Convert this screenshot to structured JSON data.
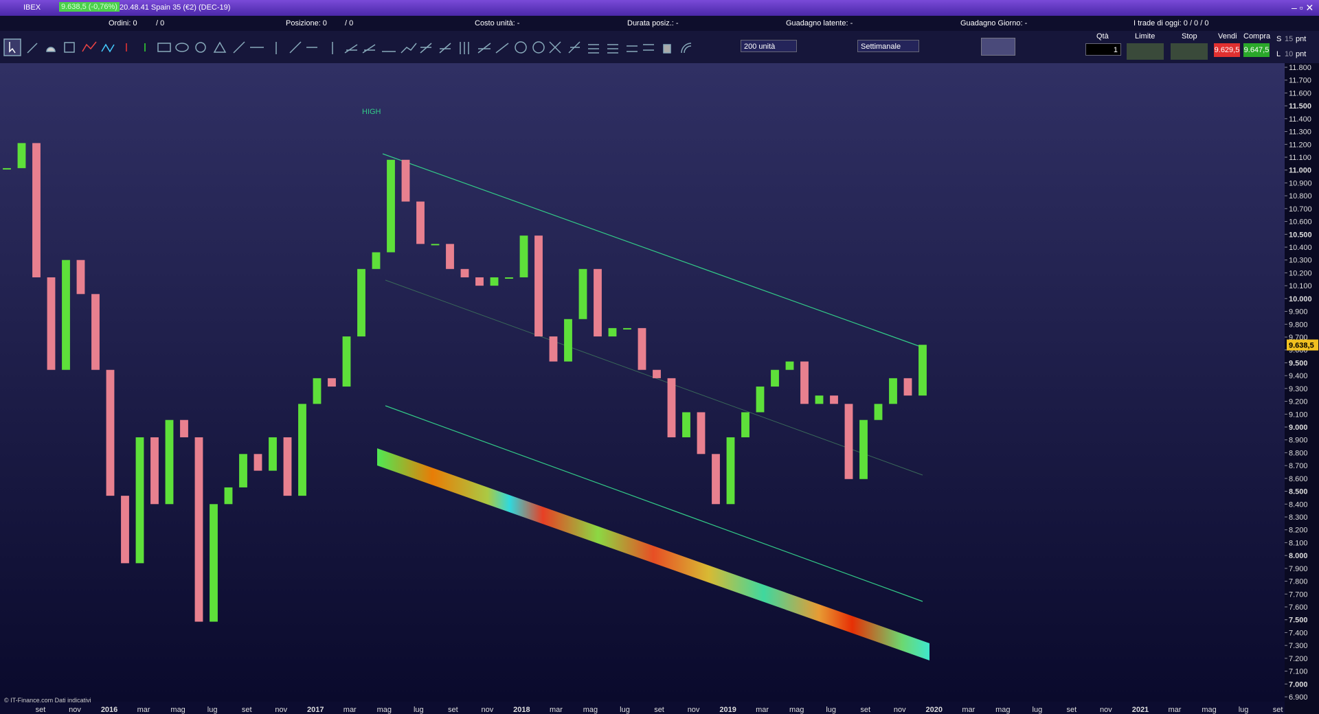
{
  "title_bar": {
    "symbol": "IBEX",
    "quote": "9.638,5 (-0,76%)",
    "info": "20.48.41 Spain 35 (€2) (DEC-19)"
  },
  "status_bar": {
    "orders": "Ordini: 0",
    "orders_total": "/ 0",
    "position": "Posizione: 0",
    "position_total": "/ 0",
    "unit_cost": "Costo unità: -",
    "duration": "Durata posiz.: -",
    "latent_gain": "Guadagno latente: -",
    "day_gain": "Guadagno Giorno: -",
    "trades_today": "I trade di oggi: 0 / 0 / 0"
  },
  "toolbar": {
    "quantity_select": "200 unità",
    "period_select": "Settimanale",
    "qty_label": "Qtà",
    "qty_value": "1",
    "limit_label": "Limite",
    "stop_label": "Stop",
    "sell_label": "Vendi",
    "sell_price": "9.629,5",
    "buy_label": "Compra",
    "buy_price": "9.647,5",
    "s_label": "S",
    "s_value": "15",
    "s_unit": "pnt",
    "l_label": "L",
    "l_value": "10",
    "l_unit": "pnt"
  },
  "chart_data": {
    "type": "candlestick",
    "annotation": "HIGH",
    "footer": "© IT-Finance.com Dati indicativi",
    "values": [
      11015,
      11210,
      10165,
      9445,
      10300,
      10035,
      9445,
      8465,
      7940,
      8920,
      8400,
      9055,
      8920,
      7485,
      8400,
      8530,
      8790,
      8660,
      8920,
      8465,
      9180,
      9380,
      9315,
      9705,
      10230,
      10360,
      11080,
      10755,
      10425,
      10425,
      10230,
      10165,
      10100,
      10165,
      10165,
      10490,
      9705,
      9510,
      9840,
      10230,
      9705,
      9770,
      9770,
      9445,
      9380,
      8920,
      9115,
      8790,
      8400,
      8920,
      9115,
      9315,
      9445,
      9510,
      9180,
      9245,
      9180,
      8595,
      9055,
      9180,
      9380,
      9245,
      9640
    ],
    "up_color": "#5ee03a",
    "down_color": "#e8808f",
    "last_price": {
      "value": 9638.5,
      "label": "9.638,5"
    },
    "ylim": [
      6900,
      11800
    ],
    "yticks": [
      {
        "value": 6900,
        "label": "6.900"
      },
      {
        "value": 7000,
        "label": "7.000"
      },
      {
        "value": 7100,
        "label": "7.100"
      },
      {
        "value": 7200,
        "label": "7.200"
      },
      {
        "value": 7300,
        "label": "7.300"
      },
      {
        "value": 7400,
        "label": "7.400"
      },
      {
        "value": 7500,
        "label": "7.500"
      },
      {
        "value": 7600,
        "label": "7.600"
      },
      {
        "value": 7700,
        "label": "7.700"
      },
      {
        "value": 7800,
        "label": "7.800"
      },
      {
        "value": 7900,
        "label": "7.900"
      },
      {
        "value": 8000,
        "label": "8.000"
      },
      {
        "value": 8100,
        "label": "8.100"
      },
      {
        "value": 8200,
        "label": "8.200"
      },
      {
        "value": 8300,
        "label": "8.300"
      },
      {
        "value": 8400,
        "label": "8.400"
      },
      {
        "value": 8500,
        "label": "8.500"
      },
      {
        "value": 8600,
        "label": "8.600"
      },
      {
        "value": 8700,
        "label": "8.700"
      },
      {
        "value": 8800,
        "label": "8.800"
      },
      {
        "value": 8900,
        "label": "8.900"
      },
      {
        "value": 9000,
        "label": "9.000"
      },
      {
        "value": 9100,
        "label": "9.100"
      },
      {
        "value": 9200,
        "label": "9.200"
      },
      {
        "value": 9300,
        "label": "9.300"
      },
      {
        "value": 9400,
        "label": "9.400"
      },
      {
        "value": 9500,
        "label": "9.500"
      },
      {
        "value": 9600,
        "label": "9.600"
      },
      {
        "value": 9700,
        "label": "9.700"
      },
      {
        "value": 9800,
        "label": "9.800"
      },
      {
        "value": 9900,
        "label": "9.900"
      },
      {
        "value": 10000,
        "label": "10.000"
      },
      {
        "value": 10100,
        "label": "10.100"
      },
      {
        "value": 10200,
        "label": "10.200"
      },
      {
        "value": 10300,
        "label": "10.300"
      },
      {
        "value": 10400,
        "label": "10.400"
      },
      {
        "value": 10500,
        "label": "10.500"
      },
      {
        "value": 10600,
        "label": "10.600"
      },
      {
        "value": 10700,
        "label": "10.700"
      },
      {
        "value": 10800,
        "label": "10.800"
      },
      {
        "value": 10900,
        "label": "10.900"
      },
      {
        "value": 11000,
        "label": "11.000"
      },
      {
        "value": 11100,
        "label": "11.100"
      },
      {
        "value": 11200,
        "label": "11.200"
      },
      {
        "value": 11300,
        "label": "11.300"
      },
      {
        "value": 11400,
        "label": "11.400"
      },
      {
        "value": 11500,
        "label": "11.500"
      },
      {
        "value": 11600,
        "label": "11.600"
      },
      {
        "value": 11700,
        "label": "11.700"
      },
      {
        "value": 11800,
        "label": "11.800"
      }
    ],
    "x_labels": [
      "set",
      "nov",
      "2016",
      "mar",
      "mag",
      "lug",
      "set",
      "nov",
      "2017",
      "mar",
      "mag",
      "lug",
      "set",
      "nov",
      "2018",
      "mar",
      "mag",
      "lug",
      "set",
      "nov",
      "2019",
      "mar",
      "mag",
      "lug",
      "set",
      "nov",
      "2020",
      "mar",
      "mag",
      "lug",
      "set",
      "nov",
      "2021",
      "mar",
      "mag",
      "lug",
      "set"
    ]
  }
}
